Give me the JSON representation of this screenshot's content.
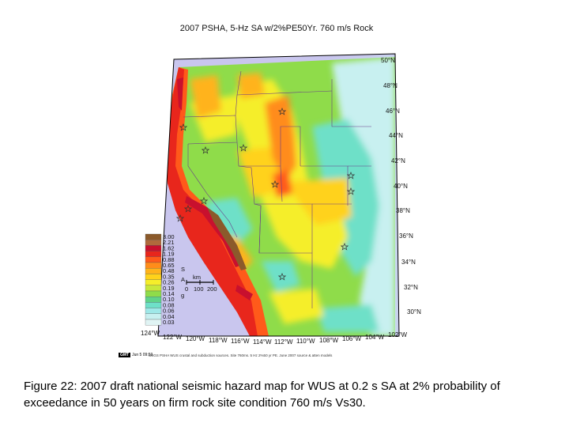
{
  "map": {
    "title": "2007 PSHA, 5-Hz SA w/2%PE50Yr. 760 m/s Rock",
    "lat_labels": [
      "50°N",
      "48°N",
      "46°N",
      "44°N",
      "42°N",
      "40°N",
      "38°N",
      "36°N",
      "34°N",
      "32°N",
      "30°N"
    ],
    "lon_labels": [
      "124°W",
      "122°W",
      "120°W",
      "118°W",
      "116°W",
      "114°W",
      "112°W",
      "110°W",
      "108°W",
      "106°W",
      "104°W",
      "102°W"
    ],
    "legend": {
      "unit_top": "S",
      "unit_mid": "A",
      "unit_bottom": "g",
      "scale_unit": "km",
      "scale_ticks": [
        "0",
        "100",
        "200"
      ],
      "values": [
        "3.00",
        "2.21",
        "1.62",
        "1.19",
        "0.88",
        "0.65",
        "0.48",
        "0.35",
        "0.26",
        "0.19",
        "0.14",
        "0.10",
        "0.08",
        "0.06",
        "0.04",
        "0.03"
      ],
      "colors": [
        "#8b5a2b",
        "#b06a3c",
        "#c8102e",
        "#e8261c",
        "#ff5a1a",
        "#ff8c1a",
        "#ffb31a",
        "#ffd21a",
        "#f5ee2a",
        "#c8e83a",
        "#8fdc4a",
        "#5fd38a",
        "#6ee0c8",
        "#9fe8e8",
        "#c8f0f0",
        "#e0f4f4"
      ]
    },
    "gmt_tag": "GMT",
    "timestamp": "Jun 5 09:59",
    "footer": "USGS PSHA WUS crustal and subduction sources. Site 760ms. 5 Hz 2%50 yr PE. June 2007 source & atten models"
  },
  "caption": "Figure 22: 2007 draft national seismic hazard map for WUS at 0.2 s SA at 2% probability of exceedance in 50 years on firm rock site condition 760 m/s Vs30."
}
